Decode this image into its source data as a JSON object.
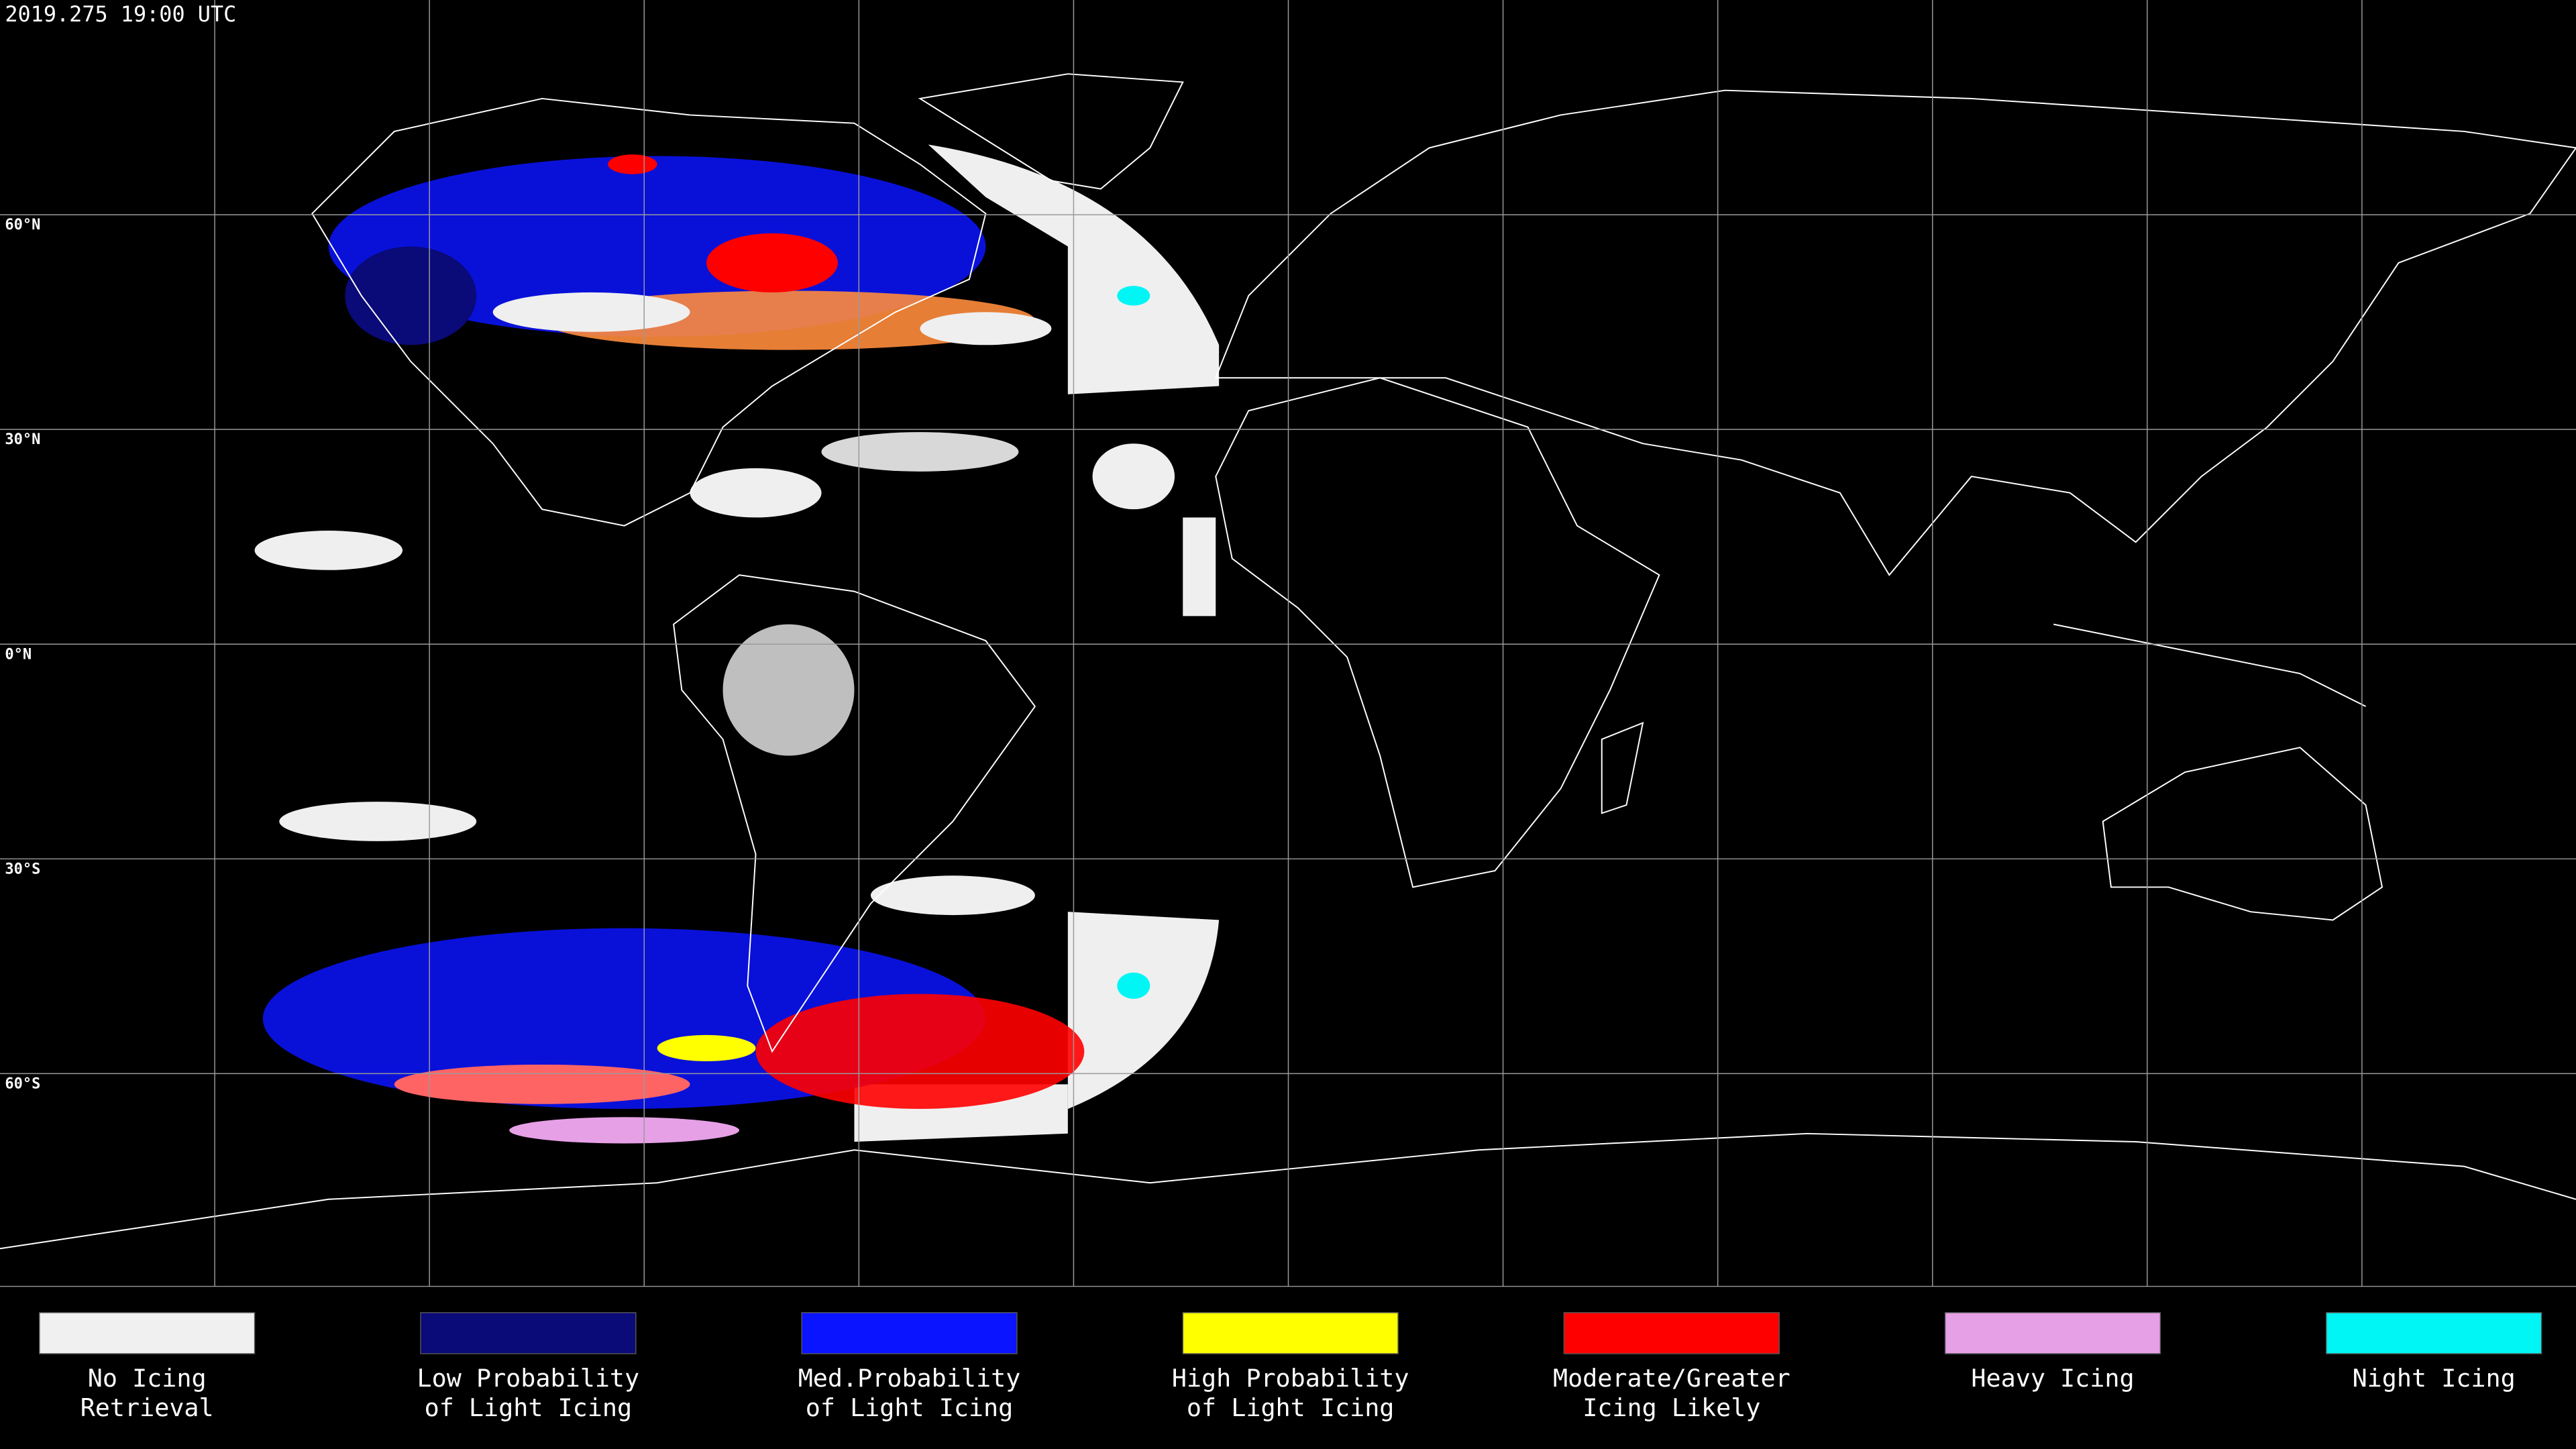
{
  "header": {
    "timestamp": "2019.275 19:00 UTC"
  },
  "latitude_labels": [
    "60°N",
    "30°N",
    "0°N",
    "30°S",
    "60°S"
  ],
  "legend": [
    {
      "color": "#f0f0f0",
      "lines": [
        "No Icing",
        "Retrieval"
      ]
    },
    {
      "color": "#0a0a78",
      "lines": [
        "Low Probability",
        "of Light Icing"
      ]
    },
    {
      "color": "#0a14ff",
      "lines": [
        "Med.Probability",
        "of Light Icing"
      ]
    },
    {
      "color": "#ffff00",
      "lines": [
        "High Probability",
        "of Light Icing"
      ]
    },
    {
      "color": "#ff0000",
      "lines": [
        "Moderate/Greater",
        "Icing Likely"
      ]
    },
    {
      "color": "#e6a0e6",
      "lines": [
        "Heavy Icing"
      ]
    },
    {
      "color": "#00f5f5",
      "lines": [
        "Night Icing"
      ]
    }
  ]
}
